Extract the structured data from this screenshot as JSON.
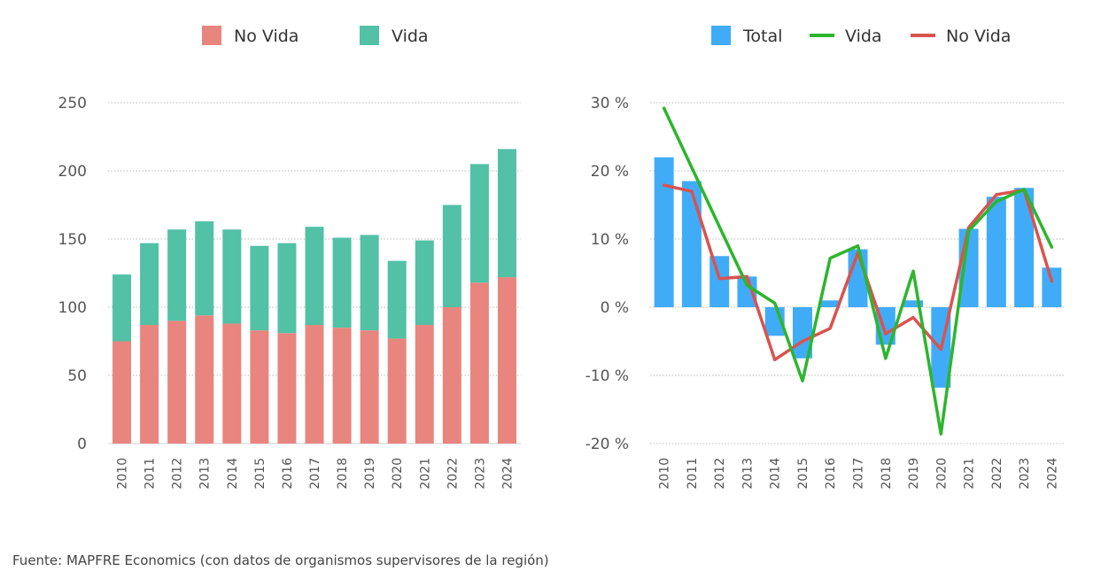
{
  "colors": {
    "no_vida": "#E8857E",
    "vida": "#52C1A6",
    "total": "#40ACF7",
    "vida_line": "#2DB52D",
    "no_vida_line": "#D9534F",
    "grid": "#BBBBBB",
    "text": "#555555"
  },
  "chart_data": [
    {
      "type": "bar",
      "stacked": true,
      "categories": [
        "2010",
        "2011",
        "2012",
        "2013",
        "2014",
        "2015",
        "2016",
        "2017",
        "2018",
        "2019",
        "2020",
        "2021",
        "2022",
        "2023",
        "2024"
      ],
      "series": [
        {
          "name": "No Vida",
          "values": [
            75,
            87,
            90,
            94,
            88,
            83,
            81,
            87,
            85,
            83,
            77,
            87,
            100,
            118,
            122
          ]
        },
        {
          "name": "Vida",
          "values": [
            49,
            60,
            67,
            69,
            69,
            62,
            66,
            72,
            66,
            70,
            57,
            62,
            75,
            87,
            94
          ]
        }
      ],
      "ylim": [
        0,
        250
      ],
      "yticks": [
        0,
        50,
        100,
        150,
        200,
        250
      ],
      "ytick_labels": [
        "0",
        "50",
        "100",
        "150",
        "200",
        "250"
      ],
      "legend": [
        "No Vida",
        "Vida"
      ],
      "legend_position": "top",
      "grid": true
    },
    {
      "type": "bar+line",
      "categories": [
        "2010",
        "2011",
        "2012",
        "2013",
        "2014",
        "2015",
        "2016",
        "2017",
        "2018",
        "2019",
        "2020",
        "2021",
        "2022",
        "2023",
        "2024"
      ],
      "series": [
        {
          "name": "Total",
          "kind": "bar",
          "values": [
            22,
            18.5,
            7.5,
            4.5,
            -4.2,
            -7.5,
            1,
            8.5,
            -5.5,
            1,
            -11.8,
            11.5,
            16.2,
            17.5,
            5.8
          ]
        },
        {
          "name": "Vida",
          "kind": "line",
          "values": [
            29.2,
            20.5,
            11.8,
            3.2,
            0.6,
            -10.8,
            7.2,
            9.0,
            -7.5,
            5.3,
            -18.6,
            11.2,
            15.5,
            17.3,
            8.8
          ]
        },
        {
          "name": "No Vida",
          "kind": "line",
          "values": [
            17.9,
            17.0,
            4.2,
            4.5,
            -7.7,
            -5.0,
            -3.1,
            8.0,
            -3.9,
            -1.5,
            -6.2,
            11.7,
            16.5,
            17.2,
            3.8
          ]
        }
      ],
      "ylim": [
        -20,
        30
      ],
      "yticks": [
        -20,
        -10,
        0,
        10,
        20,
        30
      ],
      "ytick_labels": [
        "-20 %",
        "-10 %",
        "0 %",
        "10 %",
        "20 %",
        "30 %"
      ],
      "legend": [
        "Total",
        "Vida",
        "No Vida"
      ],
      "legend_position": "top",
      "grid": true
    }
  ],
  "source_text": "Fuente: MAPFRE Economics (con datos de organismos supervisores de la región)"
}
